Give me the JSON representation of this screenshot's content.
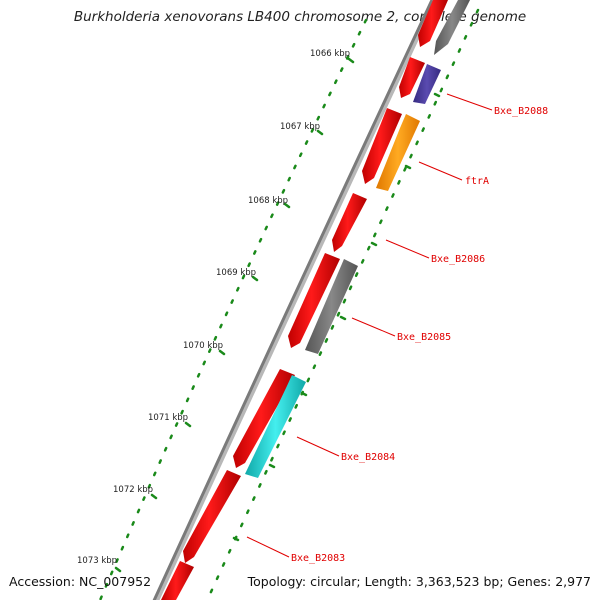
{
  "title": "Burkholderia xenovorans LB400 chromosome 2, complete genome",
  "accession": "Accession: NC_007952",
  "summary": "Topology: circular; Length: 3,363,523 bp; Genes: 2,977",
  "colors": {
    "forward_gene": "#ff0000",
    "backbone": "#808080",
    "tick": "#1a8a1a",
    "label": "#e00000",
    "reverse_grey": "#707070",
    "reverse_purple": "#4a3a9a",
    "reverse_orange": "#ff9900",
    "reverse_cyan": "#22cccc"
  },
  "ruler": {
    "labels": [
      "1066 kbp",
      "1067 kbp",
      "1068 kbp",
      "1069 kbp",
      "1070 kbp",
      "1071 kbp",
      "1072 kbp",
      "1073 kbp"
    ]
  },
  "gene_labels": [
    "Bxe_B2088",
    "ftrA",
    "Bxe_B2086",
    "Bxe_B2085",
    "Bxe_B2084",
    "Bxe_B2083"
  ],
  "reverse_genes": [
    {
      "color": "grey"
    },
    {
      "color": "purple"
    },
    {
      "color": "orange"
    },
    {
      "color": "grey"
    },
    {
      "color": "cyan"
    }
  ]
}
